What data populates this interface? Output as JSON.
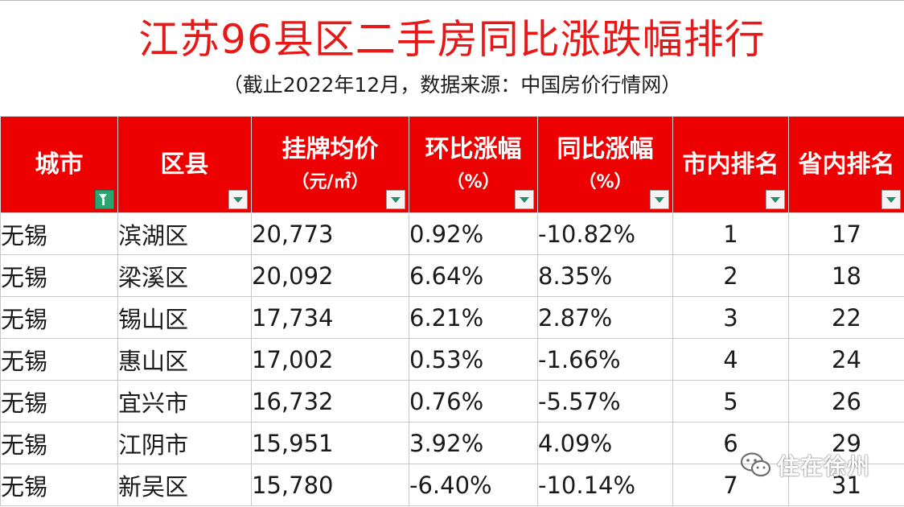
{
  "header": {
    "title": "江苏96县区二手房同比涨跌幅排行",
    "subtitle": "（截止2022年12月，数据来源：中国房价行情网）"
  },
  "table": {
    "columns": [
      {
        "label": "城市",
        "sub": ""
      },
      {
        "label": "区县",
        "sub": ""
      },
      {
        "label": "挂牌均价",
        "sub": "（元/㎡）"
      },
      {
        "label": "环比涨幅",
        "sub": "（%）"
      },
      {
        "label": "同比涨幅",
        "sub": "（%）"
      },
      {
        "label": "市内排名",
        "sub": ""
      },
      {
        "label": "省内排名",
        "sub": ""
      }
    ],
    "rows": [
      {
        "city": "无锡",
        "district": "滨湖区",
        "price": "20,773",
        "mom": "0.92%",
        "yoy": "-10.82%",
        "city_rank": "1",
        "prov_rank": "17"
      },
      {
        "city": "无锡",
        "district": "梁溪区",
        "price": "20,092",
        "mom": "6.64%",
        "yoy": "8.35%",
        "city_rank": "2",
        "prov_rank": "18"
      },
      {
        "city": "无锡",
        "district": "锡山区",
        "price": "17,734",
        "mom": "6.21%",
        "yoy": "2.87%",
        "city_rank": "3",
        "prov_rank": "22"
      },
      {
        "city": "无锡",
        "district": "惠山区",
        "price": "17,002",
        "mom": "0.53%",
        "yoy": "-1.66%",
        "city_rank": "4",
        "prov_rank": "24"
      },
      {
        "city": "无锡",
        "district": "宜兴市",
        "price": "16,732",
        "mom": "0.76%",
        "yoy": "-5.57%",
        "city_rank": "5",
        "prov_rank": "26"
      },
      {
        "city": "无锡",
        "district": "江阴市",
        "price": "15,951",
        "mom": "3.92%",
        "yoy": "4.09%",
        "city_rank": "6",
        "prov_rank": "29"
      },
      {
        "city": "无锡",
        "district": "新吴区",
        "price": "15,780",
        "mom": "-6.40%",
        "yoy": "-10.14%",
        "city_rank": "7",
        "prov_rank": "31"
      }
    ]
  },
  "watermark": {
    "text": "住在徐州",
    "icon": "wechat-icon"
  },
  "colors": {
    "title": "#e81818",
    "header_bg": "#ee0000",
    "negative": "#22a55a"
  }
}
